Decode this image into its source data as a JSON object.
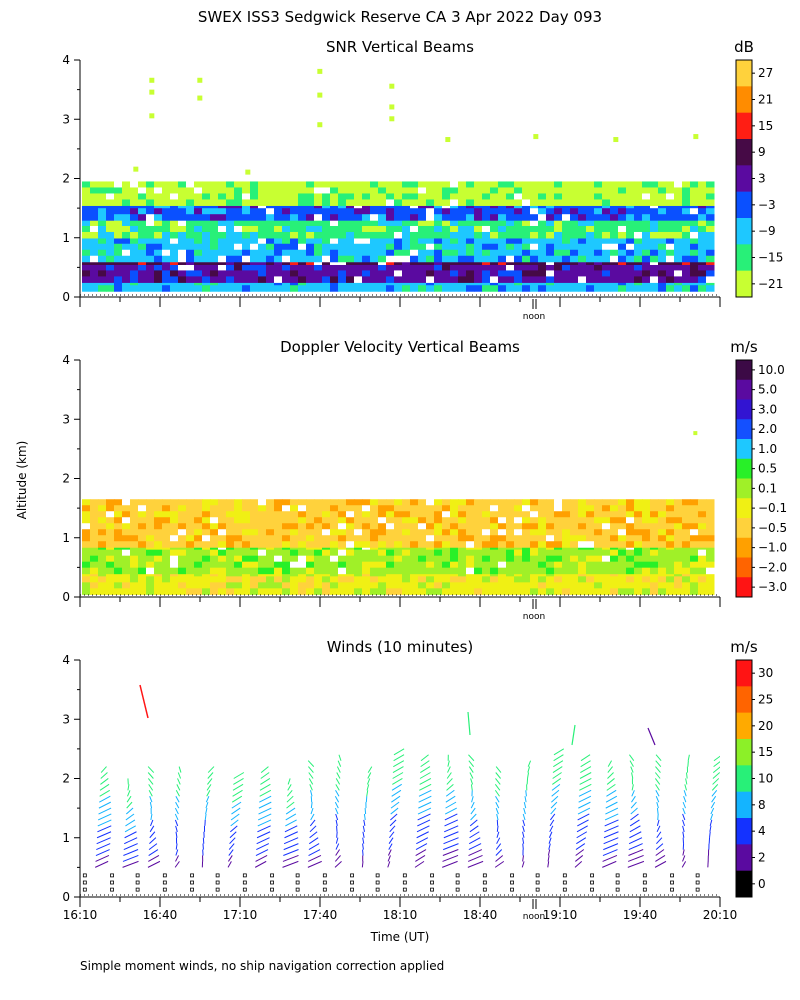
{
  "header": {
    "title": "SWEX ISS3 Sedgwick Reserve CA   3 Apr 2022 Day 093"
  },
  "footer": {
    "note": "Simple moment winds, no ship navigation correction applied"
  },
  "shared": {
    "ylabel": "Altitude (km)",
    "xlabel": "Time (UT)",
    "noon_label": "noon",
    "x_tick_labels": [
      "16:10",
      "16:40",
      "17:10",
      "17:40",
      "18:10",
      "18:40",
      "19:10",
      "19:40",
      "20:10"
    ]
  },
  "chart_data": [
    {
      "type": "heatmap",
      "title": "SNR Vertical Beams",
      "ylabel": "Altitude (km)",
      "ylim": [
        0,
        4
      ],
      "y_ticks": [
        "0",
        "1",
        "2",
        "3",
        "4"
      ],
      "x_range_hours": [
        16.1667,
        20.1667
      ],
      "colorbar": {
        "unit": "dB",
        "labels": [
          "27",
          "21",
          "15",
          "9",
          "3",
          "−3",
          "−9",
          "−15",
          "−21"
        ],
        "colors": [
          "#ffd23c",
          "#ff8c00",
          "#ff1e14",
          "#460a46",
          "#5a0aa0",
          "#0a50ff",
          "#1ec8ff",
          "#28f078",
          "#c8ff32"
        ]
      },
      "layers_km": [
        {
          "range": [
            0.15,
            0.3
          ],
          "level": "−9"
        },
        {
          "range": [
            0.3,
            0.55
          ],
          "level": "3"
        },
        {
          "range": [
            0.55,
            0.65
          ],
          "level": "9"
        },
        {
          "range": [
            0.65,
            1.0
          ],
          "level": "−9"
        },
        {
          "range": [
            1.0,
            1.3
          ],
          "level": "−15"
        },
        {
          "range": [
            1.3,
            1.6
          ],
          "level": "−3"
        },
        {
          "range": [
            1.6,
            1.95
          ],
          "level": "−21"
        }
      ]
    },
    {
      "type": "heatmap",
      "title": "Doppler Velocity Vertical Beams",
      "ylabel": "Altitude (km)",
      "ylim": [
        0,
        4
      ],
      "y_ticks": [
        "0",
        "1",
        "2",
        "3",
        "4"
      ],
      "x_range_hours": [
        16.1667,
        20.1667
      ],
      "colorbar": {
        "unit": "m/s",
        "labels": [
          "10.0",
          "5.0",
          "3.0",
          "2.0",
          "1.0",
          "0.5",
          "0.1",
          "−0.1",
          "−0.5",
          "−1.0",
          "−2.0",
          "−3.0"
        ],
        "colors": [
          "#3c0a46",
          "#5a0aa0",
          "#3214d2",
          "#1450ff",
          "#1ec8ff",
          "#28f028",
          "#a0f028",
          "#f0f014",
          "#ffd23c",
          "#ffa000",
          "#ff6400",
          "#ff1414"
        ]
      },
      "layers_km": [
        {
          "range": [
            0.1,
            0.45
          ],
          "level": "−0.1"
        },
        {
          "range": [
            0.45,
            0.9
          ],
          "level": "0.1"
        },
        {
          "range": [
            0.9,
            1.65
          ],
          "level": "−0.5"
        }
      ]
    },
    {
      "type": "scatter",
      "subtype": "wind-barbs",
      "title": "Winds (10 minutes)",
      "ylabel": "Altitude (km)",
      "xlabel": "Time (UT)",
      "ylim": [
        0,
        4
      ],
      "y_ticks": [
        "0",
        "1",
        "2",
        "3",
        "4"
      ],
      "x_range_hours": [
        16.1667,
        20.1667
      ],
      "colorbar": {
        "unit": "m/s",
        "labels": [
          "30",
          "25",
          "20",
          "15",
          "10",
          "8",
          "4",
          "2",
          "0"
        ],
        "colors": [
          "#ff1414",
          "#ff6400",
          "#ffaa00",
          "#8cf028",
          "#28f078",
          "#14b4ff",
          "#1432ff",
          "#5a0aa0",
          "#000000"
        ]
      },
      "profile_times_hours": [
        16.25,
        16.42,
        16.58,
        16.75,
        16.92,
        17.08,
        17.25,
        17.42,
        17.58,
        17.75,
        17.92,
        18.08,
        18.25,
        18.42,
        18.58,
        18.75,
        18.92,
        19.08,
        19.25,
        19.42,
        19.58,
        19.75,
        19.92,
        20.08
      ],
      "profile_top_km": [
        2.15,
        1.95,
        2.2,
        2.2,
        2.2,
        2.1,
        2.15,
        2.0,
        2.3,
        2.4,
        2.2,
        2.45,
        2.4,
        2.4,
        2.35,
        2.2,
        2.3,
        2.45,
        2.4,
        2.3,
        2.4,
        2.35,
        2.4,
        2.35
      ]
    }
  ]
}
